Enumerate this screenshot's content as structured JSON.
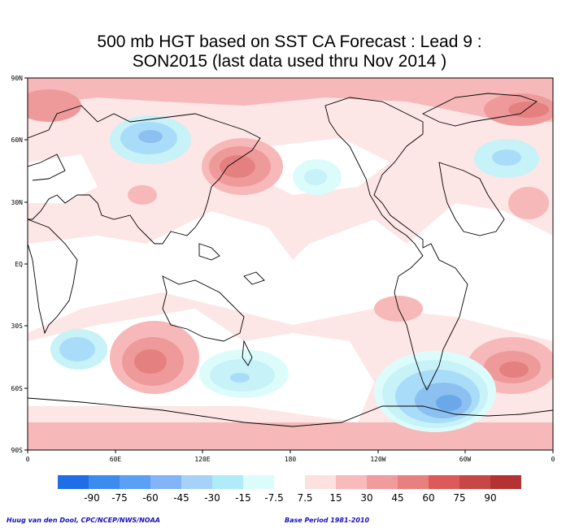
{
  "title": {
    "line1": "500 mb HGT based on SST CA Forecast : Lead 9 :",
    "line2": "SON2015 (last data used thru Nov 2014 )"
  },
  "map": {
    "lat_labels": [
      "90N",
      "60N",
      "30N",
      "EQ",
      "30S",
      "60S",
      "90S"
    ],
    "lon_labels": [
      "0",
      "60E",
      "120E",
      "180",
      "120W",
      "60W",
      "0"
    ]
  },
  "colorbar": {
    "labels": [
      "-90",
      "-75",
      "-60",
      "-45",
      "-30",
      "-15",
      "-7.5",
      "7.5",
      "15",
      "30",
      "45",
      "60",
      "75",
      "90"
    ],
    "colors": [
      "#1f6ee8",
      "#3c8cf0",
      "#5aa0f5",
      "#82b4f8",
      "#a6d2f8",
      "#b0ecf8",
      "#dcfcfc",
      "#ffffff",
      "#fde0e0",
      "#f8baba",
      "#f09c9c",
      "#e88080",
      "#dc5a5a",
      "#c84646",
      "#b43232"
    ]
  },
  "credits": {
    "left": "Huug van den Dool, CPC/NCEP/NWS/NOAA",
    "right": "Base Period 1981-2010"
  }
}
